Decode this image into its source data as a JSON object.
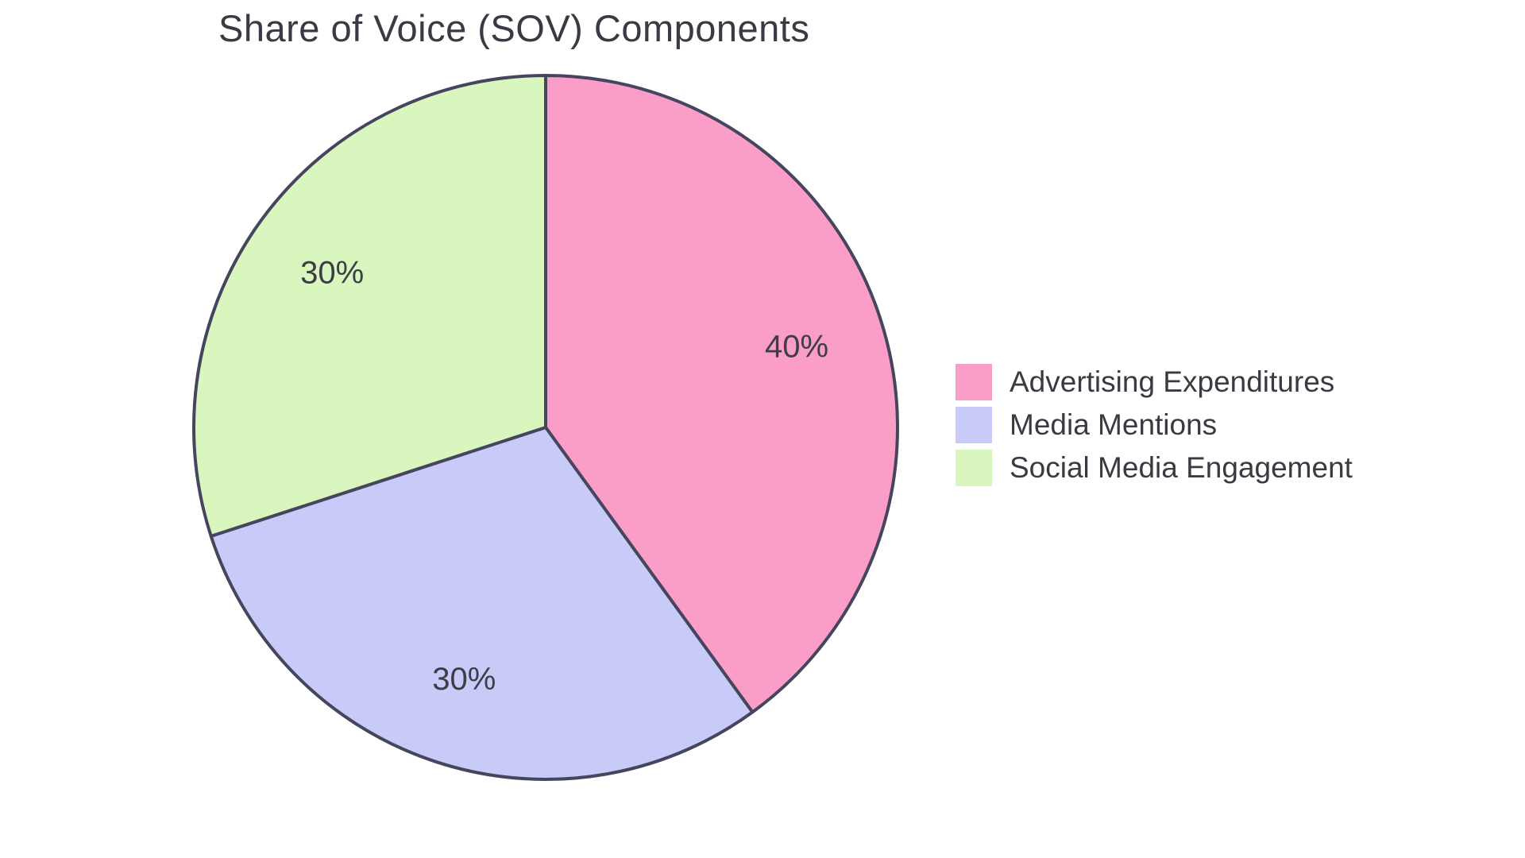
{
  "chart_data": {
    "type": "pie",
    "title": "Share of Voice (SOV) Components",
    "slices": [
      {
        "label": "Advertising Expenditures",
        "value": 40,
        "pct_label": "40%",
        "color": "#FA9EC7"
      },
      {
        "label": "Media Mentions",
        "value": 30,
        "pct_label": "30%",
        "color": "#C8CAF7"
      },
      {
        "label": "Social Media Engagement",
        "value": 30,
        "pct_label": "30%",
        "color": "#D9F6BE"
      }
    ],
    "start_angle": "12 o'clock",
    "direction": "clockwise",
    "stroke_color": "#45455E",
    "label_color": "#3D3D47",
    "title_color": "#3A3A44",
    "legend_position": "right",
    "background": "#FFFFFF"
  }
}
